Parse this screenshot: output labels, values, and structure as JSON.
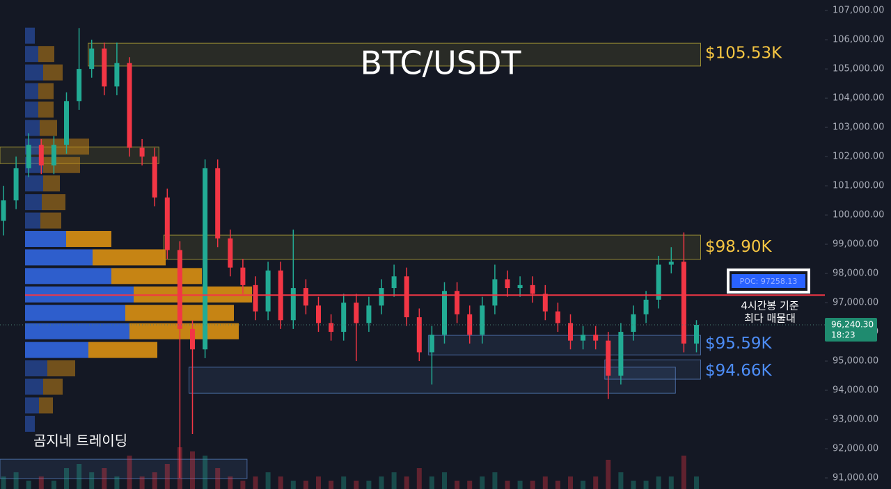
{
  "chart_data": {
    "type": "candlestick",
    "title": "BTC/USDT",
    "ylim": [
      90620,
      107360
    ],
    "yticks": [
      {
        "value": 107000,
        "label": "107,000.00"
      },
      {
        "value": 106000,
        "label": "106,000.00"
      },
      {
        "value": 105000,
        "label": "105,000.00"
      },
      {
        "value": 104000,
        "label": "104,000.00"
      },
      {
        "value": 103000,
        "label": "103,000.00"
      },
      {
        "value": 102000,
        "label": "102,000.00"
      },
      {
        "value": 101000,
        "label": "101,000.00"
      },
      {
        "value": 100000,
        "label": "100,000.00"
      },
      {
        "value": 99000,
        "label": "99,000.00"
      },
      {
        "value": 98000,
        "label": "98,000.00"
      },
      {
        "value": 97000,
        "label": "97,000.00"
      },
      {
        "value": 96000,
        "label": "96,000.00"
      },
      {
        "value": 95000,
        "label": "95,000.00"
      },
      {
        "value": 94000,
        "label": "94,000.00"
      },
      {
        "value": 93000,
        "label": "93,000.00"
      },
      {
        "value": 92000,
        "label": "92,000.00"
      },
      {
        "value": 91000,
        "label": "91,000.00"
      }
    ],
    "up_color": "#22ab94",
    "down_color": "#f23645",
    "open": [
      99800,
      100500,
      101600,
      102400,
      101700,
      102400,
      103900,
      105000,
      105700,
      104400,
      105200,
      102300,
      102000,
      100600,
      98800,
      96100,
      95400,
      101600,
      99200,
      98200,
      97600,
      96700,
      98100,
      96400,
      97500,
      96900,
      96300,
      96000,
      97000,
      96300,
      96900,
      97500,
      97900,
      96500,
      95300,
      95900,
      97400,
      96600,
      95900,
      96900,
      97800,
      97500,
      97600,
      97300,
      96700,
      96300,
      95700,
      95900,
      95700,
      94500,
      96000,
      96600,
      97100,
      98300,
      98400,
      95600
    ],
    "high": [
      101000,
      102000,
      102800,
      102600,
      102700,
      104200,
      106400,
      106000,
      105900,
      105900,
      105400,
      102600,
      102300,
      100900,
      99100,
      96400,
      101900,
      101900,
      99500,
      98500,
      97900,
      98400,
      98400,
      99500,
      97800,
      97200,
      96600,
      97300,
      97300,
      97200,
      97800,
      98300,
      98200,
      96800,
      96200,
      97700,
      97700,
      96900,
      97200,
      98300,
      98100,
      97900,
      97900,
      97600,
      97000,
      96600,
      96200,
      96200,
      96000,
      96300,
      96900,
      97400,
      98600,
      98900,
      99400,
      96400
    ],
    "low": [
      99300,
      100200,
      101300,
      101400,
      101400,
      102100,
      103600,
      104700,
      104100,
      104100,
      102000,
      101700,
      100300,
      98500,
      91000,
      92500,
      95100,
      98900,
      97900,
      97300,
      96400,
      96400,
      96100,
      96100,
      96600,
      96000,
      95700,
      95700,
      95000,
      96000,
      96600,
      97200,
      96200,
      95000,
      94200,
      95600,
      96300,
      95600,
      95600,
      96600,
      97200,
      97200,
      97000,
      96400,
      96000,
      95400,
      95400,
      95400,
      93700,
      94200,
      95700,
      96300,
      96800,
      98000,
      95300,
      95300
    ],
    "close": [
      100500,
      101600,
      102400,
      101700,
      102400,
      103900,
      105000,
      105700,
      104400,
      105200,
      102300,
      102000,
      100600,
      98800,
      96100,
      95400,
      101600,
      99200,
      98200,
      97600,
      96700,
      98100,
      96400,
      97500,
      96900,
      96300,
      96000,
      97000,
      96300,
      96900,
      97500,
      97900,
      96500,
      95300,
      95900,
      97400,
      96600,
      95900,
      96900,
      97800,
      97500,
      97600,
      97300,
      96700,
      96300,
      95700,
      95900,
      95700,
      94500,
      96000,
      96600,
      97100,
      98300,
      98400,
      95600,
      96240
    ],
    "volume": [
      3,
      4,
      2,
      3,
      2,
      5,
      6,
      4,
      5,
      3,
      8,
      3,
      4,
      6,
      10,
      9,
      8,
      5,
      3,
      2,
      3,
      4,
      3,
      2,
      2,
      3,
      2,
      3,
      2,
      2,
      3,
      4,
      3,
      5,
      3,
      4,
      2,
      2,
      3,
      4,
      2,
      2,
      2,
      3,
      2,
      3,
      2,
      3,
      7,
      4,
      2,
      2,
      3,
      3,
      8,
      3
    ],
    "profile": {
      "prices": [
        106140,
        105510,
        104880,
        104240,
        103610,
        102980,
        102340,
        101710,
        101080,
        100440,
        99810,
        99180,
        98550,
        97910,
        97280,
        96650,
        96020,
        95380,
        94750,
        94120,
        93480,
        92850
      ],
      "buy": [
        14,
        19,
        26,
        19,
        19,
        21,
        22,
        26,
        26,
        24,
        22,
        59,
        97,
        124,
        156,
        144,
        150,
        91,
        32,
        26,
        20,
        14
      ],
      "sell": [
        0,
        23,
        28,
        22,
        22,
        25,
        70,
        53,
        24,
        34,
        30,
        65,
        105,
        130,
        170,
        156,
        157,
        99,
        40,
        28,
        20,
        0
      ],
      "buy_color": "#2f62d6",
      "sell_color": "#d08a14"
    },
    "zones": [
      {
        "high": 105880,
        "low": 105100,
        "start": 7,
        "end": 55,
        "color": "#c9b83a"
      },
      {
        "high": 99310,
        "low": 98480,
        "start": 13,
        "end": 55,
        "color": "#c9b83a"
      },
      {
        "high": 102330,
        "low": 101760,
        "start": 0,
        "end": 12,
        "color": "#c9b83a"
      },
      {
        "high": 95880,
        "low": 95210,
        "start": 34,
        "end": 55,
        "color": "#5b86c9"
      },
      {
        "high": 94790,
        "low": 93900,
        "start": 15,
        "end": 53,
        "color": "#5b86c9"
      },
      {
        "high": 95040,
        "low": 94380,
        "start": 48,
        "end": 55,
        "color": "#5b86c9"
      },
      {
        "high": 91640,
        "low": 90980,
        "start": 0,
        "end": 19,
        "color": "#5b86c9"
      }
    ],
    "levels": [
      {
        "value": 105530,
        "label": "$105.53K",
        "color": "#f5c542"
      },
      {
        "value": 98900,
        "label": "$98.90K",
        "color": "#f5c542"
      },
      {
        "value": 95590,
        "label": "$95.59K",
        "color": "#4d8df7"
      },
      {
        "value": 94660,
        "label": "$94.66K",
        "color": "#4d8df7"
      }
    ],
    "poc": {
      "value": 97258.13,
      "label": "POC: 97258.13",
      "color": "#f23645"
    },
    "current": {
      "value": 96240.3,
      "label": "96,240.30",
      "countdown": "18:23"
    },
    "note": [
      "4시간봉 기준",
      "최다 매물대"
    ],
    "watermark": "곰지네 트레이딩"
  }
}
